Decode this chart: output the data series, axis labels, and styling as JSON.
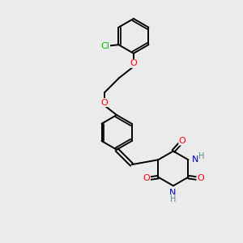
{
  "background_color": "#ebebeb",
  "bond_color": "#000000",
  "bond_width": 1.4,
  "atom_colors": {
    "O": "#ff0000",
    "N": "#0000bb",
    "Cl": "#00bb00",
    "H": "#558888",
    "C": "#000000"
  },
  "font_size": 8,
  "figsize": [
    3.0,
    3.0
  ],
  "dpi": 100
}
